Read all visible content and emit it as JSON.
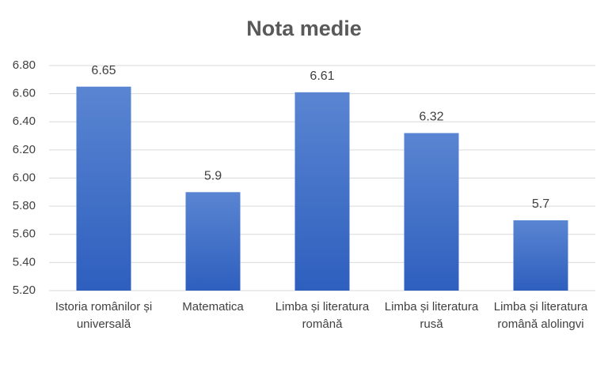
{
  "chart_data": {
    "type": "bar",
    "title": "Nota medie",
    "categories": [
      "Istoria românilor și universală",
      "Matematica",
      "Limba și literatura română",
      "Limba și literatura rusă",
      "Limba și literatura română alolingvi"
    ],
    "values": [
      6.65,
      5.9,
      6.61,
      6.32,
      5.7
    ],
    "color": "#4472c4",
    "ylim": [
      5.2,
      6.8
    ],
    "yticks": [
      {
        "value": 5.2,
        "label": "5.20"
      },
      {
        "value": 5.4,
        "label": "5.40"
      },
      {
        "value": 5.6,
        "label": "5.60"
      },
      {
        "value": 5.8,
        "label": "5.80"
      },
      {
        "value": 6.0,
        "label": "6.00"
      },
      {
        "value": 6.2,
        "label": "6.20"
      },
      {
        "value": 6.4,
        "label": "6.40"
      },
      {
        "value": 6.6,
        "label": "6.60"
      },
      {
        "value": 6.8,
        "label": "6.80"
      }
    ],
    "grid": true
  }
}
